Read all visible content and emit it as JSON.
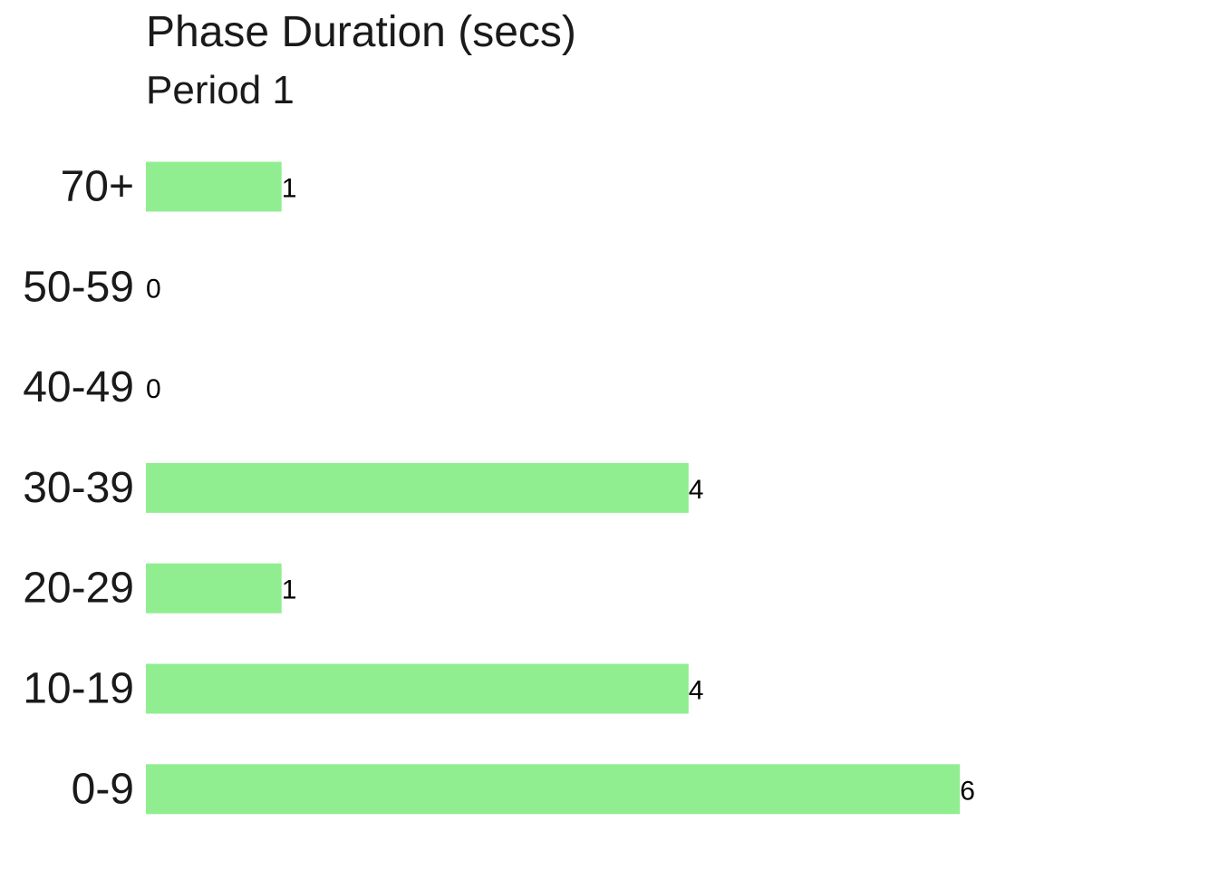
{
  "chart_data": {
    "type": "bar",
    "orientation": "horizontal",
    "title": "Phase Duration (secs)",
    "subtitle": "Period 1",
    "categories": [
      "70+",
      "50-59",
      "40-49",
      "30-39",
      "20-29",
      "10-19",
      "0-9"
    ],
    "values": [
      1,
      0,
      0,
      4,
      1,
      4,
      6
    ],
    "data_labels": [
      "1",
      "0",
      "0",
      "4",
      "1",
      "4",
      "6"
    ],
    "xlim": [
      0,
      6
    ],
    "grid": false,
    "legend": "none",
    "bar_color": "#90EE90"
  }
}
